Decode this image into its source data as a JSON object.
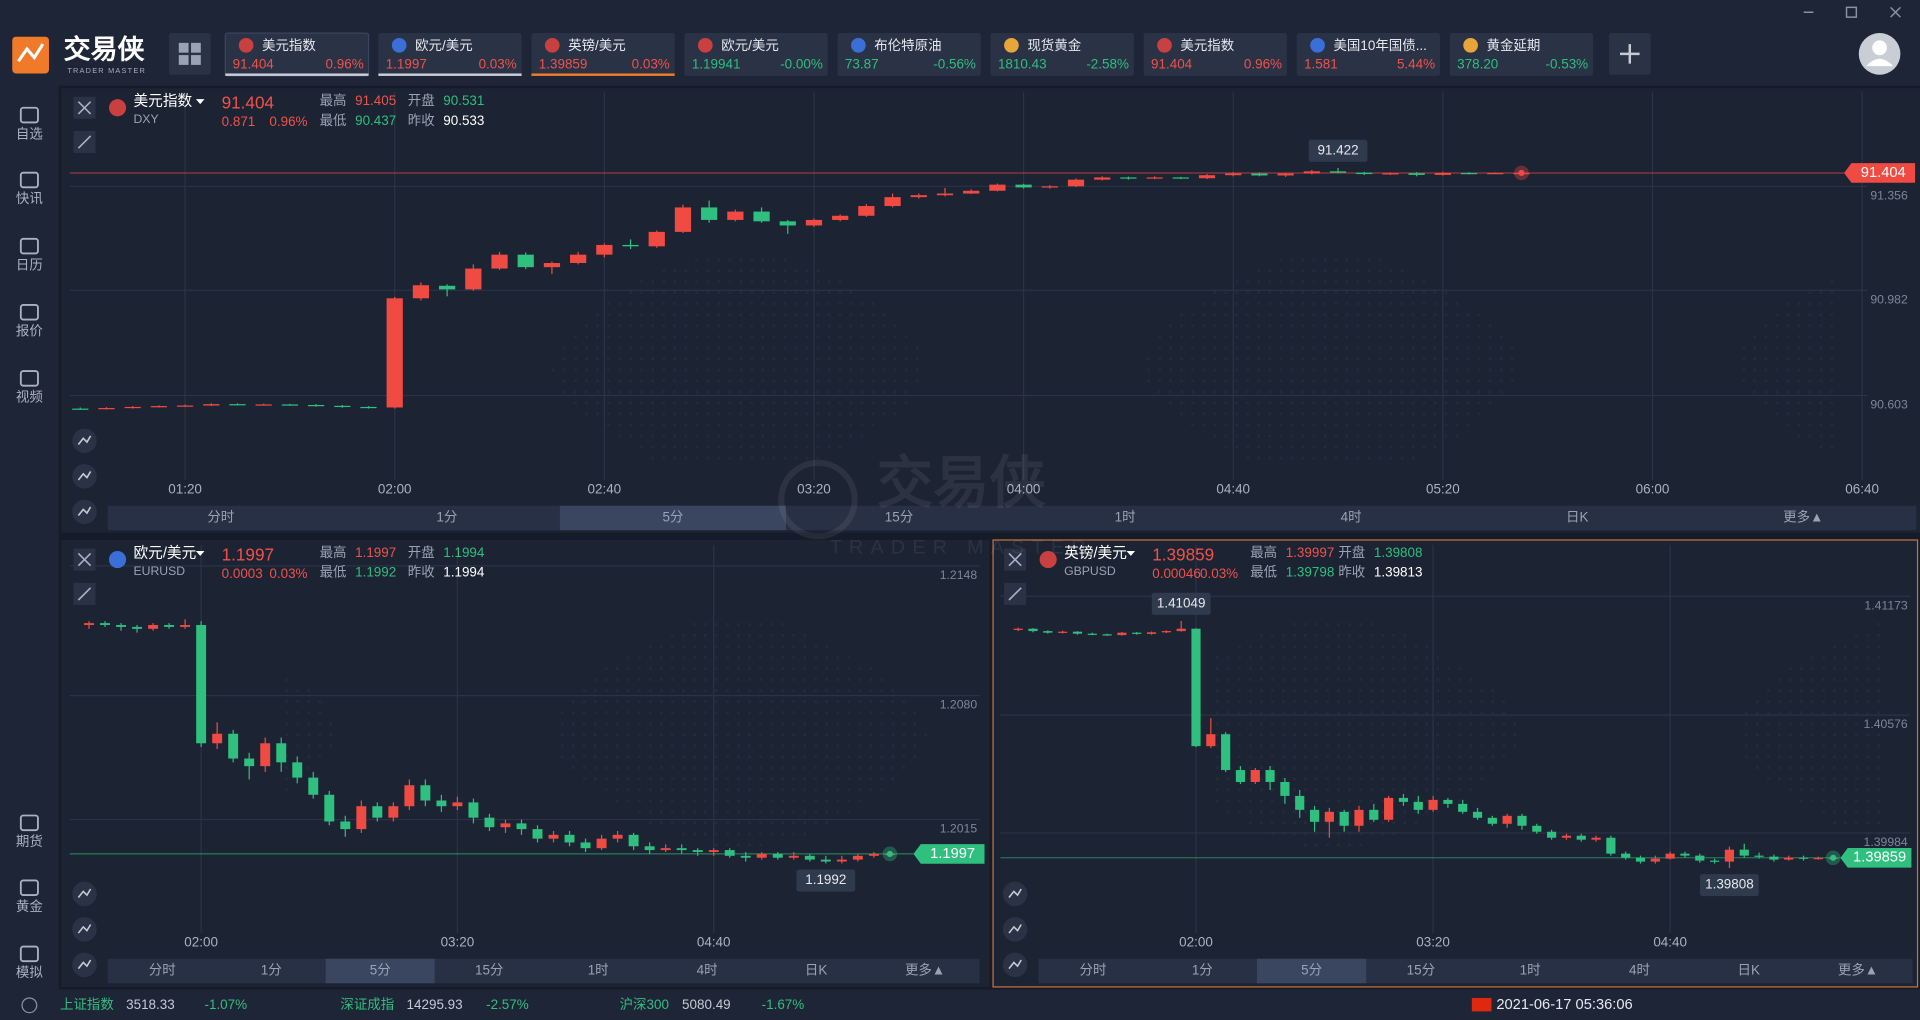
{
  "header": {
    "logo": "交易侠",
    "logo_sub": "TRADER MASTER",
    "tickers": [
      {
        "name": "美元指数",
        "price": "91.404",
        "change": "0.96%"
      },
      {
        "name": "欧元/美元",
        "price": "1.1997",
        "change": "0.03%"
      },
      {
        "name": "英镑/美元",
        "price": "1.39859",
        "change": "0.03%"
      },
      {
        "name": "欧元/美元",
        "price": "1.19941",
        "change": "-0.00%"
      },
      {
        "name": "布伦特原油",
        "price": "73.87",
        "change": "-0.56%"
      },
      {
        "name": "现货黄金",
        "price": "1810.43",
        "change": "-2.58%"
      },
      {
        "name": "美元指数",
        "price": "91.404",
        "change": "0.96%"
      },
      {
        "name": "美国10年国债...",
        "price": "1.581",
        "change": "5.44%"
      },
      {
        "name": "黄金延期",
        "price": "378.20",
        "change": "-0.53%"
      }
    ]
  },
  "sidebar": {
    "top": [
      "自选",
      "快讯",
      "日历",
      "报价",
      "视频"
    ],
    "bottom": [
      "期货",
      "黄金",
      "模拟"
    ]
  },
  "intervals": [
    "分时",
    "1分",
    "5分",
    "15分",
    "1时",
    "4时",
    "日K",
    "更多▲"
  ],
  "watermark": {
    "title": "交易侠",
    "subtitle": "TRADER MASTER"
  },
  "footer": {
    "indices": [
      {
        "name": "上证指数",
        "value": "3518.33",
        "change": "-1.07%"
      },
      {
        "name": "深证成指",
        "value": "14295.93",
        "change": "-2.57%"
      },
      {
        "name": "沪深300",
        "value": "5080.49",
        "change": "-1.67%"
      }
    ],
    "datetime": "2021-06-17 05:36:06"
  },
  "chart_data": [
    {
      "type": "candlestick",
      "title": "美元指数",
      "subtitle": "DXY",
      "quote": {
        "price": "91.404",
        "change": "0.871",
        "change_pct": "0.96%"
      },
      "stats": [
        {
          "label": "最高",
          "value": "91.405"
        },
        {
          "label": "开盘",
          "value": "90.531"
        },
        {
          "label": "最低",
          "value": "90.437"
        },
        {
          "label": "昨收",
          "value": "90.533"
        }
      ],
      "active_interval": "5分",
      "up_color": "#ef4b42",
      "down_color": "#2fbf7e",
      "last_color": "#ef4b42",
      "grid": true,
      "x": [
        60,
        65,
        70,
        75,
        80,
        85,
        90,
        95,
        100,
        105,
        110,
        115,
        120,
        125,
        130,
        135,
        140,
        145,
        150,
        155,
        160,
        165,
        170,
        175,
        180,
        185,
        190,
        195,
        200,
        205,
        210,
        215,
        220,
        225,
        230,
        235,
        240,
        245,
        250,
        255,
        260,
        265,
        270,
        275,
        280,
        285,
        290,
        295,
        300,
        305,
        310,
        315,
        320,
        325,
        330,
        335
      ],
      "open": [
        90.556,
        90.555,
        90.558,
        90.562,
        90.565,
        90.567,
        90.572,
        90.57,
        90.571,
        90.569,
        90.566,
        90.562,
        90.56,
        90.953,
        90.998,
        90.985,
        91.06,
        91.11,
        91.065,
        91.08,
        91.11,
        91.145,
        91.14,
        91.192,
        91.28,
        91.235,
        91.265,
        91.23,
        91.215,
        91.235,
        91.25,
        91.285,
        91.317,
        91.324,
        91.33,
        91.34,
        91.362,
        91.352,
        91.356,
        91.38,
        91.388,
        91.385,
        91.388,
        91.385,
        91.396,
        91.402,
        91.395,
        91.402,
        91.41,
        91.405,
        91.4,
        91.403,
        91.397,
        91.404,
        91.402,
        91.404
      ],
      "close": [
        90.555,
        90.558,
        90.562,
        90.565,
        90.567,
        90.572,
        90.57,
        90.571,
        90.569,
        90.566,
        90.562,
        90.56,
        90.953,
        91.0,
        90.985,
        91.06,
        91.11,
        91.065,
        91.08,
        91.11,
        91.145,
        91.14,
        91.192,
        91.28,
        91.235,
        91.265,
        91.23,
        91.215,
        91.235,
        91.25,
        91.285,
        91.317,
        91.324,
        91.33,
        91.34,
        91.362,
        91.352,
        91.356,
        91.38,
        91.388,
        91.385,
        91.388,
        91.385,
        91.396,
        91.402,
        91.395,
        91.402,
        91.41,
        91.405,
        91.4,
        91.403,
        91.397,
        91.404,
        91.402,
        91.404,
        91.404
      ],
      "high": [
        90.56,
        90.561,
        90.565,
        90.568,
        90.57,
        90.575,
        90.575,
        90.574,
        90.573,
        90.572,
        90.569,
        90.565,
        90.958,
        91.01,
        91.003,
        91.075,
        91.12,
        91.118,
        91.085,
        91.12,
        91.15,
        91.165,
        91.197,
        91.29,
        91.305,
        91.272,
        91.28,
        91.235,
        91.24,
        91.255,
        91.292,
        91.33,
        91.33,
        91.35,
        91.345,
        91.366,
        91.365,
        91.36,
        91.384,
        91.392,
        91.391,
        91.392,
        91.39,
        91.4,
        91.407,
        91.406,
        91.405,
        91.415,
        91.422,
        91.408,
        91.406,
        91.407,
        91.408,
        91.407,
        91.406,
        91.406
      ],
      "low": [
        90.552,
        90.553,
        90.556,
        90.56,
        90.563,
        90.565,
        90.568,
        90.567,
        90.566,
        90.563,
        90.559,
        90.556,
        90.556,
        90.945,
        90.96,
        90.98,
        91.055,
        91.058,
        91.04,
        91.075,
        91.1,
        91.13,
        91.135,
        91.188,
        91.225,
        91.23,
        91.225,
        91.185,
        91.21,
        91.23,
        91.246,
        91.28,
        91.312,
        91.32,
        91.328,
        91.338,
        91.348,
        91.348,
        91.353,
        91.377,
        91.38,
        91.382,
        91.382,
        91.382,
        91.392,
        91.392,
        91.39,
        91.399,
        91.402,
        91.397,
        91.397,
        91.392,
        91.395,
        91.399,
        91.4,
        91.402
      ],
      "xlim": [
        58,
        401
      ],
      "xticks": [
        {
          "value": 80,
          "label": "01:20"
        },
        {
          "value": 120,
          "label": "02:00"
        },
        {
          "value": 160,
          "label": "02:40"
        },
        {
          "value": 200,
          "label": "03:20"
        },
        {
          "value": 240,
          "label": "04:00"
        },
        {
          "value": 280,
          "label": "04:40"
        },
        {
          "value": 320,
          "label": "05:20"
        },
        {
          "value": 360,
          "label": "06:00"
        },
        {
          "value": 400,
          "label": "06:40"
        }
      ],
      "ylim": [
        90.299,
        91.696
      ],
      "yticks": [
        91.356,
        90.982,
        90.603
      ],
      "last": 91.404,
      "high_label": 91.422
    },
    {
      "type": "candlestick",
      "title": "欧元/美元",
      "subtitle": "EURUSD",
      "quote": {
        "price": "1.1997",
        "change": "0.0003",
        "change_pct": "0.03%"
      },
      "stats": [
        {
          "label": "最高",
          "value": "1.1997"
        },
        {
          "label": "开盘",
          "value": "1.1994"
        },
        {
          "label": "最低",
          "value": "1.1992"
        },
        {
          "label": "昨收",
          "value": "1.1994"
        }
      ],
      "active_interval": "5分",
      "up_color": "#ef4b42",
      "down_color": "#2fbf7e",
      "last_color": "#2fbf7e",
      "grid": true,
      "x": [
        85,
        90,
        95,
        100,
        105,
        110,
        115,
        120,
        125,
        130,
        135,
        140,
        145,
        150,
        155,
        160,
        165,
        170,
        175,
        180,
        185,
        190,
        195,
        200,
        205,
        210,
        215,
        220,
        225,
        230,
        235,
        240,
        245,
        250,
        255,
        260,
        265,
        270,
        275,
        280,
        285,
        290,
        295,
        300,
        305,
        310,
        315,
        320,
        325,
        330,
        335
      ],
      "open": [
        1.2117,
        1.2118,
        1.2117,
        1.2116,
        1.2115,
        1.2117,
        1.2116,
        1.2117,
        1.2055,
        1.206,
        1.2047,
        1.2043,
        1.2055,
        1.2045,
        1.2037,
        1.2028,
        1.2014,
        1.201,
        1.2022,
        1.2016,
        1.2022,
        1.2033,
        1.2025,
        1.2022,
        1.2024,
        1.2016,
        1.2011,
        1.2013,
        1.201,
        1.2005,
        1.2007,
        1.2003,
        1.2,
        1.2005,
        1.2007,
        1.2001,
        1.1999,
        1.2,
        1.1999,
        1.1998,
        1.1999,
        1.1996,
        1.1995,
        1.1997,
        1.1995,
        1.1996,
        1.1994,
        1.1993,
        1.1994,
        1.1996,
        1.1997
      ],
      "close": [
        1.2118,
        1.2117,
        1.2116,
        1.2115,
        1.2117,
        1.2116,
        1.2117,
        1.2055,
        1.206,
        1.2047,
        1.2043,
        1.2055,
        1.2045,
        1.2037,
        1.2028,
        1.2014,
        1.201,
        1.2022,
        1.2016,
        1.2022,
        1.2033,
        1.2025,
        1.2022,
        1.2024,
        1.2016,
        1.2011,
        1.2013,
        1.201,
        1.2005,
        1.2007,
        1.2003,
        1.2,
        1.2005,
        1.2007,
        1.2001,
        1.1999,
        1.2,
        1.1999,
        1.1998,
        1.1999,
        1.1996,
        1.1995,
        1.1997,
        1.1995,
        1.1996,
        1.1994,
        1.1993,
        1.1994,
        1.1996,
        1.1997,
        1.1997
      ],
      "high": [
        1.2119,
        1.2119,
        1.2118,
        1.2117,
        1.2118,
        1.2118,
        1.212,
        1.2119,
        1.2066,
        1.2062,
        1.205,
        1.2058,
        1.2058,
        1.2048,
        1.204,
        1.203,
        1.2017,
        1.2025,
        1.2024,
        1.2024,
        1.2036,
        1.2036,
        1.2028,
        1.2027,
        1.2026,
        1.2018,
        1.2015,
        1.2015,
        1.2012,
        1.2009,
        1.2009,
        1.2005,
        1.2007,
        1.2009,
        1.2008,
        1.2003,
        1.2002,
        1.2002,
        1.2,
        1.2,
        1.2,
        1.1998,
        1.1998,
        1.1998,
        1.1998,
        1.1997,
        1.1996,
        1.1996,
        1.1997,
        1.1998,
        1.1998
      ],
      "low": [
        1.2115,
        1.2116,
        1.2114,
        1.2113,
        1.2114,
        1.2115,
        1.2115,
        1.2053,
        1.2052,
        1.2045,
        1.2036,
        1.204,
        1.204,
        1.2034,
        1.2026,
        1.2012,
        1.2006,
        1.2008,
        1.2014,
        1.2014,
        1.202,
        1.2022,
        1.2019,
        1.202,
        1.2013,
        1.2009,
        1.2008,
        1.2007,
        1.2003,
        1.2003,
        1.2001,
        1.1998,
        1.1999,
        1.2003,
        1.1999,
        1.1997,
        1.1998,
        1.1997,
        1.1996,
        1.1996,
        1.1995,
        1.1993,
        1.1994,
        1.1994,
        1.1994,
        1.1993,
        1.1992,
        1.1992,
        1.1993,
        1.1995,
        1.1996
      ],
      "xlim": [
        79,
        363
      ],
      "xticks": [
        {
          "value": 120,
          "label": "02:00"
        },
        {
          "value": 200,
          "label": "03:20"
        },
        {
          "value": 280,
          "label": "04:40"
        }
      ],
      "ylim": [
        1.19555,
        1.2159
      ],
      "yticks": [
        1.2148,
        {
          "value": 1.208,
          "label": "1.2080"
        },
        1.2015
      ],
      "last": 1.1997,
      "low_label": 1.1992
    },
    {
      "type": "candlestick",
      "title": "英镑/美元",
      "subtitle": "GBPUSD",
      "quote": {
        "price": "1.39859",
        "change": "0.00046",
        "change_pct": "0.03%"
      },
      "stats": [
        {
          "label": "最高",
          "value": "1.39997"
        },
        {
          "label": "开盘",
          "value": "1.39808"
        },
        {
          "label": "最低",
          "value": "1.39798"
        },
        {
          "label": "昨收",
          "value": "1.39813"
        }
      ],
      "active_interval": "5分",
      "up_color": "#ef4b42",
      "down_color": "#2fbf7e",
      "last_color": "#2fbf7e",
      "grid": true,
      "x": [
        60,
        65,
        70,
        75,
        80,
        85,
        90,
        95,
        100,
        105,
        110,
        115,
        120,
        125,
        130,
        135,
        140,
        145,
        150,
        155,
        160,
        165,
        170,
        175,
        180,
        185,
        190,
        195,
        200,
        205,
        210,
        215,
        220,
        225,
        230,
        235,
        240,
        245,
        250,
        255,
        260,
        265,
        270,
        275,
        280,
        285,
        290,
        295,
        300,
        305,
        310,
        315,
        320,
        325,
        330,
        335
      ],
      "open": [
        1.41004,
        1.4101,
        1.40998,
        1.4099,
        1.40995,
        1.40985,
        1.40982,
        1.40978,
        1.4099,
        1.40984,
        1.40992,
        1.40998,
        1.4101,
        1.4042,
        1.4048,
        1.403,
        1.4024,
        1.403,
        1.4024,
        1.4017,
        1.401,
        1.4004,
        1.4009,
        1.4002,
        1.401,
        1.4005,
        1.4016,
        1.4014,
        1.401,
        1.4015,
        1.4013,
        1.4009,
        1.4006,
        1.4003,
        1.4007,
        1.4002,
        1.3999,
        1.3996,
        1.3997,
        1.3995,
        1.3996,
        1.3988,
        1.3986,
        1.3984,
        1.39855,
        1.3988,
        1.3987,
        1.39845,
        1.3984,
        1.399,
        1.3987,
        1.39865,
        1.3985,
        1.3986,
        1.39855,
        1.39858
      ],
      "close": [
        1.4101,
        1.40998,
        1.4099,
        1.40995,
        1.40985,
        1.40982,
        1.40978,
        1.4099,
        1.40984,
        1.40992,
        1.40998,
        1.4101,
        1.4042,
        1.4048,
        1.403,
        1.4024,
        1.403,
        1.4024,
        1.4017,
        1.401,
        1.4004,
        1.4009,
        1.4002,
        1.401,
        1.4005,
        1.4016,
        1.4014,
        1.401,
        1.4015,
        1.4013,
        1.4009,
        1.4006,
        1.4003,
        1.4007,
        1.4002,
        1.3999,
        1.3996,
        1.3997,
        1.3995,
        1.3996,
        1.3988,
        1.3986,
        1.3984,
        1.39855,
        1.3988,
        1.3987,
        1.39845,
        1.3984,
        1.399,
        1.3987,
        1.39865,
        1.3985,
        1.3986,
        1.39855,
        1.39858,
        1.39859
      ],
      "high": [
        1.41015,
        1.41013,
        1.41002,
        1.41,
        1.40998,
        1.4099,
        1.40985,
        1.40994,
        1.40993,
        1.40996,
        1.41002,
        1.41049,
        1.41012,
        1.4056,
        1.4049,
        1.4032,
        1.4031,
        1.4032,
        1.4026,
        1.402,
        1.4012,
        1.4011,
        1.401,
        1.4012,
        1.4013,
        1.4017,
        1.4018,
        1.4017,
        1.4017,
        1.4016,
        1.4015,
        1.4011,
        1.4007,
        1.4008,
        1.4008,
        1.4003,
        1.4,
        1.3998,
        1.3998,
        1.3997,
        1.3997,
        1.3989,
        1.3987,
        1.3987,
        1.3989,
        1.3989,
        1.3988,
        1.39855,
        1.39915,
        1.3993,
        1.39885,
        1.39875,
        1.3987,
        1.3987,
        1.39865,
        1.39865
      ],
      "low": [
        1.40998,
        1.40992,
        1.40985,
        1.40986,
        1.4098,
        1.40978,
        1.40974,
        1.40975,
        1.4098,
        1.4098,
        1.40988,
        1.40995,
        1.40415,
        1.4041,
        1.4029,
        1.4023,
        1.4023,
        1.402,
        1.4013,
        1.4006,
        1.3999,
        1.3996,
        1.3999,
        1.3999,
        1.4004,
        1.4004,
        1.4012,
        1.4008,
        1.4009,
        1.4011,
        1.4008,
        1.4005,
        1.4002,
        1.4001,
        1.4,
        1.3998,
        1.3995,
        1.3995,
        1.3994,
        1.3994,
        1.3987,
        1.3985,
        1.3983,
        1.3983,
        1.3985,
        1.3986,
        1.39835,
        1.3983,
        1.39808,
        1.3986,
        1.39855,
        1.3984,
        1.39845,
        1.39845,
        1.3985,
        1.39852
      ],
      "xlim": [
        54,
        361
      ],
      "xticks": [
        {
          "value": 120,
          "label": "02:00"
        },
        {
          "value": 200,
          "label": "03:20"
        },
        {
          "value": 280,
          "label": "04:40"
        }
      ],
      "ylim": [
        1.39481,
        1.41431
      ],
      "yticks": [
        1.41173,
        1.40576,
        1.39984
      ],
      "last": 1.39859,
      "high_label": 1.41049,
      "low_label": 1.39808
    }
  ]
}
